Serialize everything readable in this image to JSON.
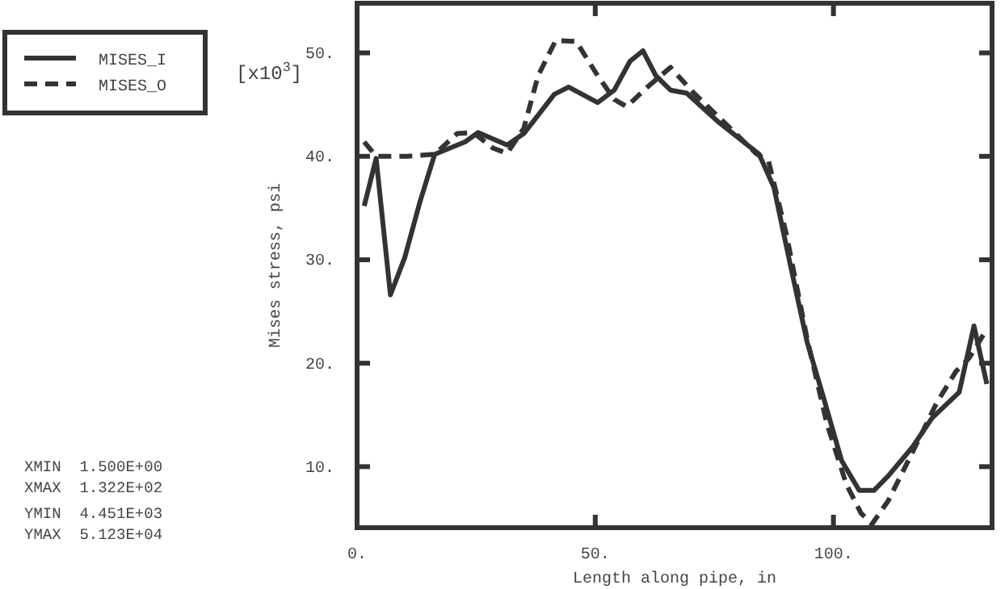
{
  "chart_data": {
    "type": "line",
    "xlabel": "Length along pipe, in",
    "ylabel": "Mises stress, psi",
    "annotations": [
      "[x10$^{3}$]",
      "XMIN  1.500E+00",
      "XMAX  1.322E+02",
      "YMIN  4.451E+03",
      "YMAX  5.123E+04"
    ],
    "xlim": [
      0,
      133.3
    ],
    "ylim": [
      4.1,
      54.8
    ],
    "xticks": [
      {
        "value": 0,
        "label": "0."
      },
      {
        "value": 50,
        "label": "50."
      },
      {
        "value": 100,
        "label": "100."
      }
    ],
    "yticks": [
      {
        "value": 10,
        "label": "10."
      },
      {
        "value": 20,
        "label": "20."
      },
      {
        "value": 30,
        "label": "30."
      },
      {
        "value": 40,
        "label": "40."
      },
      {
        "value": 50,
        "label": "50."
      }
    ],
    "grid": false,
    "legend": "top left",
    "marker": "none",
    "series": [
      {
        "name": "MISES_I",
        "color": "#333333",
        "line_style": "solid",
        "x": [
          1.5,
          4,
          7,
          10,
          13.2,
          16.3,
          22.7,
          25.4,
          31.5,
          35,
          41.4,
          44.4,
          50.5,
          54,
          57.3,
          60,
          62.7,
          65.8,
          69.2,
          75.9,
          84.4,
          87.5,
          91,
          94.5,
          97.9,
          101.7,
          105.4,
          108.5,
          111.5,
          116.6,
          120.7,
          126.4,
          129.5,
          132.2
        ],
        "values": [
          35.2,
          39.8,
          26.6,
          30.2,
          35.6,
          40.2,
          41.4,
          42.3,
          41.1,
          42.2,
          46,
          46.7,
          45.2,
          46.4,
          49.2,
          50.2,
          47.8,
          46.4,
          46.1,
          43.3,
          40.2,
          37,
          29.4,
          22,
          16.7,
          10.6,
          7.7,
          7.7,
          9.1,
          11.9,
          14.7,
          17.2,
          23.6,
          18
        ]
      },
      {
        "name": "MISES_O",
        "color": "#333333",
        "line_style": "dashed",
        "x": [
          1.5,
          4,
          10.5,
          16.3,
          21,
          24.4,
          28.5,
          31.5,
          35,
          38,
          41.7,
          46,
          50.5,
          54,
          56.6,
          60.7,
          65.8,
          70.5,
          75.9,
          83.7,
          86.4,
          90.1,
          94.5,
          98.6,
          102.7,
          105.8,
          108.1,
          111.5,
          116.6,
          121.6,
          125.7,
          128.5,
          132.2
        ],
        "values": [
          41.4,
          40,
          40,
          40.2,
          42.2,
          42.3,
          40.8,
          40.3,
          42.7,
          47.8,
          51.2,
          51.1,
          47.8,
          45.5,
          44.8,
          46.6,
          48.6,
          46.2,
          43.8,
          40.3,
          39.5,
          32.5,
          22.3,
          14.2,
          8.3,
          5.5,
          4.45,
          6.7,
          11.4,
          16.1,
          19.2,
          20.5,
          23.3
        ]
      }
    ]
  }
}
